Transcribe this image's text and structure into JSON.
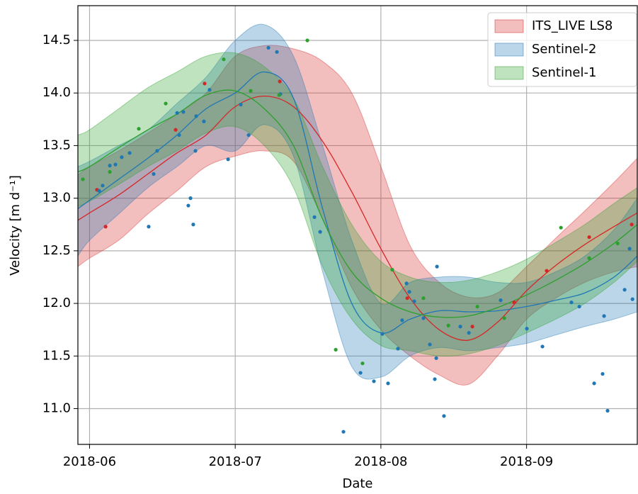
{
  "chart_data": {
    "type": "band-line-scatter",
    "xlabel": "Date",
    "ylabel": "Velocity [m d⁻¹]",
    "xlim": [
      5.92,
      9.76
    ],
    "xticks": [
      {
        "value": 6,
        "label": "2018-06"
      },
      {
        "value": 7,
        "label": "2018-07"
      },
      {
        "value": 8,
        "label": "2018-08"
      },
      {
        "value": 9,
        "label": "2018-09"
      }
    ],
    "ylim": [
      10.66,
      14.83
    ],
    "yticks": [
      {
        "value": 11,
        "label": "11.0"
      },
      11.5,
      {
        "value": 12,
        "label": "12.0"
      },
      12.5,
      {
        "value": 13,
        "label": "13.0"
      },
      13.5,
      {
        "value": 14,
        "label": "14.0"
      },
      14.5
    ],
    "grid": true,
    "legend": "upper right",
    "x": [
      5.92,
      6.0,
      6.2,
      6.4,
      6.6,
      6.8,
      7.0,
      7.2,
      7.4,
      7.6,
      7.8,
      8.0,
      8.2,
      8.4,
      8.6,
      8.8,
      9.0,
      9.2,
      9.4,
      9.6,
      9.76
    ],
    "series": [
      {
        "name": "ITS_LIVE LS8",
        "color": "#d62728",
        "values": [
          12.79,
          12.86,
          13.03,
          13.23,
          13.43,
          13.6,
          13.87,
          13.97,
          13.87,
          13.54,
          13.06,
          12.52,
          12.05,
          11.75,
          11.65,
          11.82,
          12.12,
          12.36,
          12.56,
          12.73,
          12.86
        ],
        "upper": [
          13.22,
          13.3,
          13.45,
          13.62,
          13.8,
          14.0,
          14.35,
          14.45,
          14.42,
          14.3,
          14.0,
          13.3,
          12.55,
          12.2,
          12.06,
          12.1,
          12.35,
          12.62,
          12.88,
          13.15,
          13.38
        ],
        "lower": [
          12.35,
          12.43,
          12.6,
          12.85,
          13.07,
          13.3,
          13.4,
          13.45,
          13.35,
          12.8,
          12.15,
          11.75,
          11.5,
          11.32,
          11.23,
          11.5,
          11.85,
          12.05,
          12.2,
          12.3,
          12.35
        ],
        "points": {
          "x": [
            6.051,
            6.11,
            6.591,
            6.79,
            7.306,
            8.181,
            8.628,
            8.915,
            9.138,
            9.43,
            9.722
          ],
          "y": [
            13.08,
            12.73,
            13.65,
            14.09,
            14.11,
            12.05,
            11.78,
            12.01,
            12.31,
            12.63,
            12.75
          ]
        }
      },
      {
        "name": "Sentinel-2",
        "color": "#1f77b4",
        "values": [
          12.9,
          12.98,
          13.18,
          13.38,
          13.6,
          13.85,
          14.0,
          14.2,
          13.95,
          12.9,
          12.0,
          11.72,
          11.85,
          11.93,
          11.92,
          11.93,
          11.97,
          12.03,
          12.1,
          12.25,
          12.45
        ],
        "upper": [
          13.3,
          13.35,
          13.5,
          13.65,
          13.9,
          14.15,
          14.5,
          14.65,
          14.35,
          13.5,
          12.6,
          12.0,
          12.2,
          12.25,
          12.25,
          12.2,
          12.2,
          12.3,
          12.45,
          12.7,
          13.0
        ],
        "lower": [
          12.45,
          12.6,
          12.85,
          13.1,
          13.3,
          13.5,
          13.45,
          13.7,
          13.4,
          12.3,
          11.4,
          11.3,
          11.5,
          11.58,
          11.55,
          11.58,
          11.62,
          11.7,
          11.78,
          11.85,
          11.92
        ],
        "points": {
          "x": [
            6.066,
            6.09,
            6.139,
            6.178,
            6.221,
            6.275,
            6.406,
            6.44,
            6.464,
            6.601,
            6.615,
            6.644,
            6.727,
            6.732,
            6.678,
            6.693,
            6.712,
            6.785,
            6.824,
            6.951,
            7.038,
            7.092,
            7.228,
            7.286,
            7.31,
            7.544,
            7.583,
            7.743,
            7.86,
            7.952,
            8.01,
            8.049,
            8.117,
            8.146,
            8.176,
            8.195,
            8.229,
            8.292,
            8.336,
            8.37,
            8.38,
            8.385,
            8.433,
            8.545,
            8.604,
            8.822,
            9.002,
            9.109,
            9.308,
            9.362,
            9.464,
            9.522,
            9.532,
            9.556,
            9.673,
            9.727,
            9.707
          ],
          "y": [
            13.07,
            13.12,
            13.31,
            13.32,
            13.39,
            13.43,
            12.73,
            13.23,
            13.45,
            13.81,
            13.6,
            13.82,
            13.45,
            13.78,
            12.93,
            13.0,
            12.75,
            13.73,
            14.03,
            13.37,
            13.89,
            13.6,
            14.43,
            14.39,
            13.99,
            12.82,
            12.68,
            10.78,
            11.34,
            11.26,
            11.71,
            11.24,
            11.57,
            11.84,
            12.19,
            12.11,
            12.02,
            11.86,
            11.61,
            11.28,
            11.48,
            12.35,
            10.93,
            11.78,
            11.72,
            12.03,
            11.76,
            11.59,
            12.01,
            11.97,
            11.24,
            11.33,
            11.88,
            10.98,
            12.13,
            12.04,
            12.52
          ]
        }
      },
      {
        "name": "Sentinel-1",
        "color": "#2ca02c",
        "values": [
          13.25,
          13.3,
          13.48,
          13.65,
          13.8,
          13.98,
          14.02,
          13.85,
          13.5,
          12.8,
          12.3,
          12.05,
          11.92,
          11.87,
          11.88,
          11.96,
          12.08,
          12.22,
          12.38,
          12.57,
          12.75
        ],
        "upper": [
          13.6,
          13.65,
          13.85,
          14.05,
          14.2,
          14.35,
          14.38,
          14.25,
          13.95,
          13.3,
          12.75,
          12.4,
          12.25,
          12.2,
          12.22,
          12.3,
          12.42,
          12.58,
          12.75,
          12.95,
          13.1
        ],
        "lower": [
          12.92,
          12.97,
          13.13,
          13.3,
          13.45,
          13.62,
          13.68,
          13.5,
          13.1,
          12.35,
          11.85,
          11.6,
          11.55,
          11.5,
          11.52,
          11.6,
          11.72,
          11.85,
          12.0,
          12.2,
          12.4
        ],
        "points": {
          "x": [
            5.954,
            6.139,
            6.338,
            6.523,
            6.921,
            7.106,
            7.301,
            7.495,
            7.69,
            7.874,
            8.078,
            8.292,
            8.463,
            8.662,
            8.847,
            9.236,
            9.43,
            9.625
          ],
          "y": [
            13.18,
            13.25,
            13.66,
            13.9,
            14.32,
            14.02,
            13.98,
            14.5,
            11.56,
            11.43,
            12.32,
            12.05,
            11.79,
            11.97,
            11.86,
            12.72,
            12.43,
            12.57
          ]
        }
      }
    ]
  }
}
